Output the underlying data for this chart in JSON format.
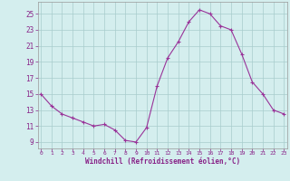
{
  "hours": [
    0,
    1,
    2,
    3,
    4,
    5,
    6,
    7,
    8,
    9,
    10,
    11,
    12,
    13,
    14,
    15,
    16,
    17,
    18,
    19,
    20,
    21,
    22,
    23
  ],
  "values": [
    15.0,
    13.5,
    12.5,
    12.0,
    11.5,
    11.0,
    11.2,
    10.5,
    9.2,
    9.0,
    10.8,
    16.0,
    19.5,
    21.5,
    24.0,
    25.5,
    25.0,
    23.5,
    23.0,
    20.0,
    16.5,
    15.0,
    13.0,
    12.5
  ],
  "xlabel": "Windchill (Refroidissement éolien,°C)",
  "yticks": [
    9,
    11,
    13,
    15,
    17,
    19,
    21,
    23,
    25
  ],
  "xticks": [
    0,
    1,
    2,
    3,
    4,
    5,
    6,
    7,
    8,
    9,
    10,
    11,
    12,
    13,
    14,
    15,
    16,
    17,
    18,
    19,
    20,
    21,
    22,
    23
  ],
  "ylim": [
    8.2,
    26.5
  ],
  "xlim": [
    -0.3,
    23.3
  ],
  "line_color": "#993399",
  "marker": "+",
  "bg_color": "#d4eeee",
  "grid_color": "#a8cccc",
  "tick_color": "#882288",
  "label_color": "#882288",
  "axis_color": "#999999"
}
